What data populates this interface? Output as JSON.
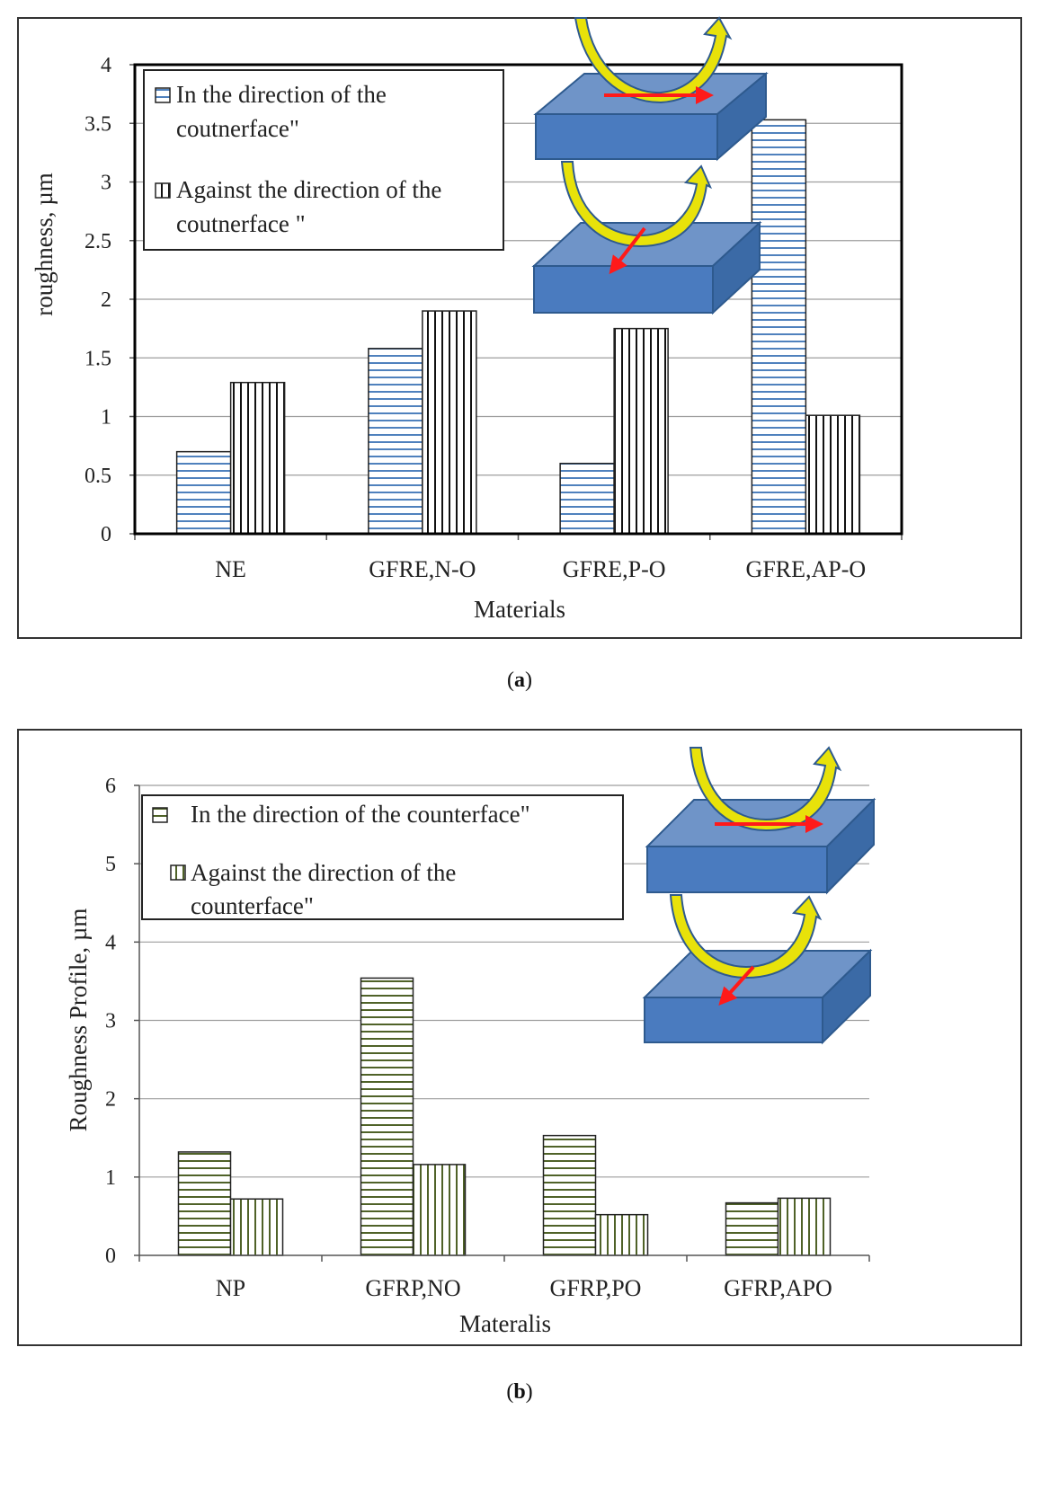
{
  "panels": [
    {
      "caption": {
        "open": "(",
        "letter": "a",
        "close": ")"
      },
      "chart_data": {
        "type": "bar",
        "title": "",
        "xlabel": "Materials",
        "ylabel": "roughness, µm",
        "ylim": [
          0,
          4
        ],
        "yticks": [
          "0",
          "0.5",
          "1",
          "1.5",
          "2",
          "2.5",
          "3",
          "3.5",
          "4"
        ],
        "tick_step": 0.5,
        "categories": [
          "NE",
          "GFRE,N-O",
          "GFRE,P-O",
          "GFRE,AP-O"
        ],
        "series": [
          {
            "name": "In the direction of the coutnerface\"",
            "legend_lines": [
              "In the direction of the",
              "coutnerface\""
            ],
            "pattern": "horizontal",
            "color": "#4f81bd",
            "values": [
              0.7,
              1.58,
              0.6,
              3.53
            ]
          },
          {
            "name": "Against the direction of the coutnerface \"",
            "legend_lines": [
              "Against the direction of the",
              "coutnerface \""
            ],
            "pattern": "vertical",
            "color": "#000000",
            "values": [
              1.29,
              1.9,
              1.75,
              1.01
            ]
          }
        ],
        "legend": "top-left",
        "grid": true
      }
    },
    {
      "caption": {
        "open": "(",
        "letter": "b",
        "close": ")"
      },
      "chart_data": {
        "type": "bar",
        "title": "",
        "xlabel": "Materalis",
        "ylabel": "Roughness Profile, µm",
        "ylim": [
          0,
          6
        ],
        "yticks": [
          "0",
          "1",
          "2",
          "3",
          "4",
          "5",
          "6"
        ],
        "tick_step": 1,
        "categories": [
          "NP",
          "GFRP,NO",
          "GFRP,PO",
          "GFRP,APO"
        ],
        "series": [
          {
            "name": "In the direction of the counterface\"",
            "legend_lines": [
              "In the direction of the counterface\""
            ],
            "pattern": "horizontal",
            "color": "#4f6228",
            "values": [
              1.32,
              3.54,
              1.53,
              0.67
            ]
          },
          {
            "name": "Against the direction of the counterface\"",
            "legend_lines": [
              "Against the direction of the",
              "counterface\""
            ],
            "pattern": "vertical",
            "color": "#4f6228",
            "values": [
              0.72,
              1.16,
              0.52,
              0.73
            ]
          }
        ],
        "legend": "top-left",
        "grid": true
      }
    }
  ],
  "colors": {
    "block_top": "#6f94c8",
    "block_front": "#4a7bbf",
    "block_side": "#3b6aa6",
    "block_edge": "#2e5a8e",
    "yellow_arrow": "#e8e20a",
    "red_arrow": "#ff1a1a",
    "grid": "#9e9e9e"
  }
}
